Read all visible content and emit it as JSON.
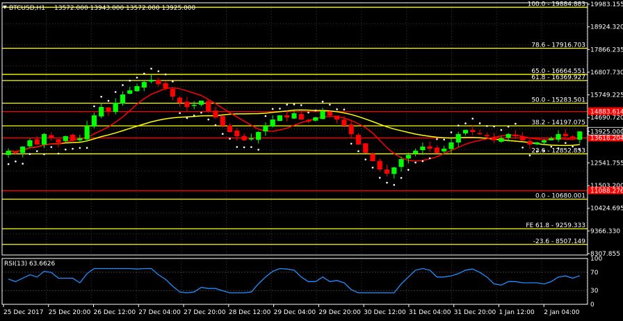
{
  "header": {
    "symbol": "BTCUSD,H1",
    "ohlc": "13572.000 13943.000 13572.000 13925.000"
  },
  "colors": {
    "background": "#000000",
    "grid": "#3c3c3c",
    "frame": "#ffffff",
    "fib_line": "#ffff00",
    "sr_line": "#ff0000",
    "ma_fast": "#ff0000",
    "ma_slow": "#ffff00",
    "psar": "#ffffff",
    "candle_up": "#00ff00",
    "candle_down": "#ff0000",
    "rsi_line": "#1e90ff",
    "text": "#ffffff"
  },
  "price_scale": [
    "19983.155",
    "18924.320",
    "17866.235",
    "16807.730",
    "15749.225",
    "14690.720",
    "13925.000",
    "12541.755",
    "11503.200",
    "10424.695",
    "9366.330",
    "8307.855"
  ],
  "current_price": "13925.000",
  "fib_levels": [
    {
      "label": "100.0 - 19884.883",
      "value": 19884.883
    },
    {
      "label": "78.6 - 17916.703",
      "value": 17916.703
    },
    {
      "label": "65.0 - 16664.551",
      "value": 16664.551
    },
    {
      "label": "61.8 - 16369.927",
      "value": 16369.927
    },
    {
      "label": "50.0 - 15283.501",
      "value": 15283.501
    },
    {
      "label": "38.2 - 14197.075",
      "value": 14197.075
    },
    {
      "label": "23.6 - 12852.853",
      "value": 12852.853
    },
    {
      "label": "0.0 - 10680.001",
      "value": 10680.001
    },
    {
      "label": "FE 61.8 - 9259.333",
      "value": 9259.333
    },
    {
      "label": "-23.6 - 8507.149",
      "value": 8507.149
    }
  ],
  "sr_levels": [
    {
      "label": "14883.614",
      "value": 14883.614
    },
    {
      "label": "13618.204",
      "value": 13618.204
    },
    {
      "label": "11088.276",
      "value": 11088.276
    }
  ],
  "rsi": {
    "label": "RSI(13) 63.6626",
    "scale": [
      "100",
      "70",
      "30",
      "0"
    ],
    "levels": [
      70,
      30
    ]
  },
  "time_axis": [
    "25 Dec 2017",
    "25 Dec 20:00",
    "26 Dec 12:00",
    "27 Dec 04:00",
    "27 Dec 20:00",
    "28 Dec 12:00",
    "29 Dec 04:00",
    "29 Dec 20:00",
    "30 Dec 12:00",
    "31 Dec 04:00",
    "31 Dec 20:00",
    "1 Jan 12:00",
    "2 Jan 04:00"
  ],
  "chart_data": {
    "type": "candlestick",
    "y_range": [
      8000,
      20100
    ],
    "closes": [
      13000,
      12900,
      13200,
      13500,
      13300,
      13800,
      13600,
      13400,
      13700,
      13500,
      13600,
      14200,
      14700,
      15100,
      14900,
      15300,
      15700,
      15900,
      16100,
      16300,
      16400,
      16200,
      16000,
      15600,
      15300,
      15100,
      15200,
      15400,
      14900,
      14600,
      14200,
      13900,
      13700,
      13500,
      13600,
      13900,
      14200,
      14500,
      14700,
      14600,
      14800,
      14500,
      14400,
      14600,
      14900,
      14700,
      14500,
      14200,
      13800,
      13300,
      12900,
      12500,
      12100,
      11900,
      12200,
      12600,
      12800,
      13000,
      13200,
      13100,
      12900,
      13100,
      13400,
      13800,
      14000,
      13900,
      13800,
      13700,
      13500,
      13600,
      13800,
      13700,
      13500,
      13300,
      13400,
      13500,
      13600,
      13800,
      13700,
      13600,
      13925
    ]
  }
}
